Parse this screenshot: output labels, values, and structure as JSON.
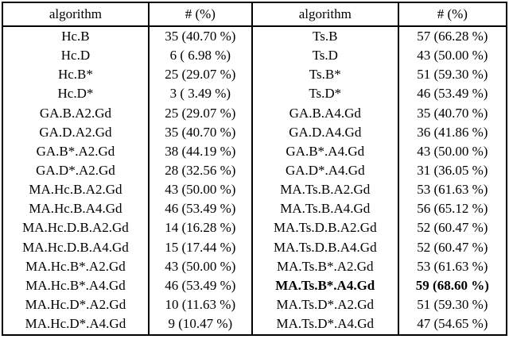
{
  "accent_colors": {
    "border": "#000000",
    "text": "#000000",
    "background": "#ffffff"
  },
  "table": {
    "headers": [
      "algorithm",
      "# (%)",
      "algorithm",
      "# (%)"
    ],
    "rows": [
      [
        "Hc.B",
        "35 (40.70 %)",
        "Ts.B",
        "57 (66.28 %)"
      ],
      [
        "Hc.D",
        "6 ( 6.98 %)",
        "Ts.D",
        "43 (50.00 %)"
      ],
      [
        "Hc.B*",
        "25 (29.07 %)",
        "Ts.B*",
        "51 (59.30 %)"
      ],
      [
        "Hc.D*",
        "3 ( 3.49 %)",
        "Ts.D*",
        "46 (53.49 %)"
      ],
      [
        "GA.B.A2.Gd",
        "25 (29.07 %)",
        "GA.B.A4.Gd",
        "35 (40.70 %)"
      ],
      [
        "GA.D.A2.Gd",
        "35 (40.70 %)",
        "GA.D.A4.Gd",
        "36 (41.86 %)"
      ],
      [
        "GA.B*.A2.Gd",
        "38 (44.19 %)",
        "GA.B*.A4.Gd",
        "43 (50.00 %)"
      ],
      [
        "GA.D*.A2.Gd",
        "28 (32.56 %)",
        "GA.D*.A4.Gd",
        "31 (36.05 %)"
      ],
      [
        "MA.Hc.B.A2.Gd",
        "43 (50.00 %)",
        "MA.Ts.B.A2.Gd",
        "53 (61.63 %)"
      ],
      [
        "MA.Hc.B.A4.Gd",
        "46 (53.49 %)",
        "MA.Ts.B.A4.Gd",
        "56 (65.12 %)"
      ],
      [
        "MA.Hc.D.B.A2.Gd",
        "14 (16.28 %)",
        "MA.Ts.D.B.A2.Gd",
        "52 (60.47 %)"
      ],
      [
        "MA.Hc.D.B.A4.Gd",
        "15 (17.44 %)",
        "MA.Ts.D.B.A4.Gd",
        "52 (60.47 %)"
      ],
      [
        "MA.Hc.B*.A2.Gd",
        "43 (50.00 %)",
        "MA.Ts.B*.A2.Gd",
        "53 (61.63 %)"
      ],
      [
        "MA.Hc.B*.A4.Gd",
        "46 (53.49 %)",
        "MA.Ts.B*.A4.Gd",
        "59 (68.60 %)"
      ],
      [
        "MA.Hc.D*.A2.Gd",
        "10 (11.63 %)",
        "MA.Ts.D*.A2.Gd",
        "51 (59.30 %)"
      ],
      [
        "MA.Hc.D*.A4.Gd",
        "9 (10.47 %)",
        "MA.Ts.D*.A4.Gd",
        "47 (54.65 %)"
      ]
    ],
    "bold_cells": [
      [
        13,
        2
      ],
      [
        13,
        3
      ]
    ]
  },
  "chart_data": {
    "type": "table",
    "title": "",
    "columns": [
      "algorithm",
      "# (%)",
      "algorithm",
      "# (%)"
    ],
    "left_series": {
      "algorithms": [
        "Hc.B",
        "Hc.D",
        "Hc.B*",
        "Hc.D*",
        "GA.B.A2.Gd",
        "GA.D.A2.Gd",
        "GA.B*.A2.Gd",
        "GA.D*.A2.Gd",
        "MA.Hc.B.A2.Gd",
        "MA.Hc.B.A4.Gd",
        "MA.Hc.D.B.A2.Gd",
        "MA.Hc.D.B.A4.Gd",
        "MA.Hc.B*.A2.Gd",
        "MA.Hc.B*.A4.Gd",
        "MA.Hc.D*.A2.Gd",
        "MA.Hc.D*.A4.Gd"
      ],
      "counts": [
        35,
        6,
        25,
        3,
        25,
        35,
        38,
        28,
        43,
        46,
        14,
        15,
        43,
        46,
        10,
        9
      ],
      "percents": [
        40.7,
        6.98,
        29.07,
        3.49,
        29.07,
        40.7,
        44.19,
        32.56,
        50.0,
        53.49,
        16.28,
        17.44,
        50.0,
        53.49,
        11.63,
        10.47
      ]
    },
    "right_series": {
      "algorithms": [
        "Ts.B",
        "Ts.D",
        "Ts.B*",
        "Ts.D*",
        "GA.B.A4.Gd",
        "GA.D.A4.Gd",
        "GA.B*.A4.Gd",
        "GA.D*.A4.Gd",
        "MA.Ts.B.A2.Gd",
        "MA.Ts.B.A4.Gd",
        "MA.Ts.D.B.A2.Gd",
        "MA.Ts.D.B.A4.Gd",
        "MA.Ts.B*.A2.Gd",
        "MA.Ts.B*.A4.Gd",
        "MA.Ts.D*.A2.Gd",
        "MA.Ts.D*.A4.Gd"
      ],
      "counts": [
        57,
        43,
        51,
        46,
        35,
        36,
        43,
        31,
        53,
        56,
        52,
        52,
        53,
        59,
        51,
        47
      ],
      "percents": [
        66.28,
        50.0,
        59.3,
        53.49,
        40.7,
        41.86,
        50.0,
        36.05,
        61.63,
        65.12,
        60.47,
        60.47,
        61.63,
        68.6,
        59.3,
        54.65
      ]
    },
    "highlighted_best": "MA.Ts.B*.A4.Gd = 59 (68.60 %)"
  }
}
